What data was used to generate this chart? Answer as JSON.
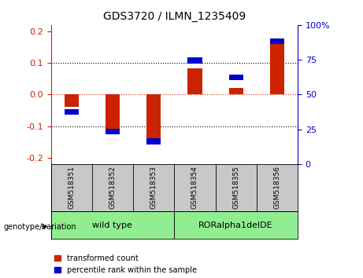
{
  "title": "GDS3720 / ILMN_1235409",
  "samples": [
    "GSM518351",
    "GSM518352",
    "GSM518353",
    "GSM518354",
    "GSM518355",
    "GSM518356"
  ],
  "red_values": [
    -0.04,
    -0.115,
    -0.155,
    0.082,
    0.022,
    0.175
  ],
  "blue_positions": [
    -0.055,
    -0.118,
    -0.148,
    0.108,
    0.055,
    0.168
  ],
  "ylim_left": [
    -0.22,
    0.22
  ],
  "ylim_right": [
    0,
    100
  ],
  "yticks_left": [
    -0.2,
    -0.1,
    0.0,
    0.1,
    0.2
  ],
  "yticks_right": [
    0,
    25,
    50,
    75,
    100
  ],
  "left_axis_color": "#cc2200",
  "right_axis_color": "#0000cc",
  "zero_line_color": "#cc2200",
  "bar_red_color": "#cc2200",
  "bar_blue_color": "#0000cc",
  "legend_red_label": "transformed count",
  "legend_blue_label": "percentile rank within the sample",
  "genotype_label": "genotype/variation",
  "background_plot": "#ffffff",
  "background_samples": "#c8c8c8",
  "group_wt_label": "wild type",
  "group_rora_label": "RORalpha1delDE",
  "group_color": "#90ee90",
  "fig_width": 4.61,
  "fig_height": 3.54
}
